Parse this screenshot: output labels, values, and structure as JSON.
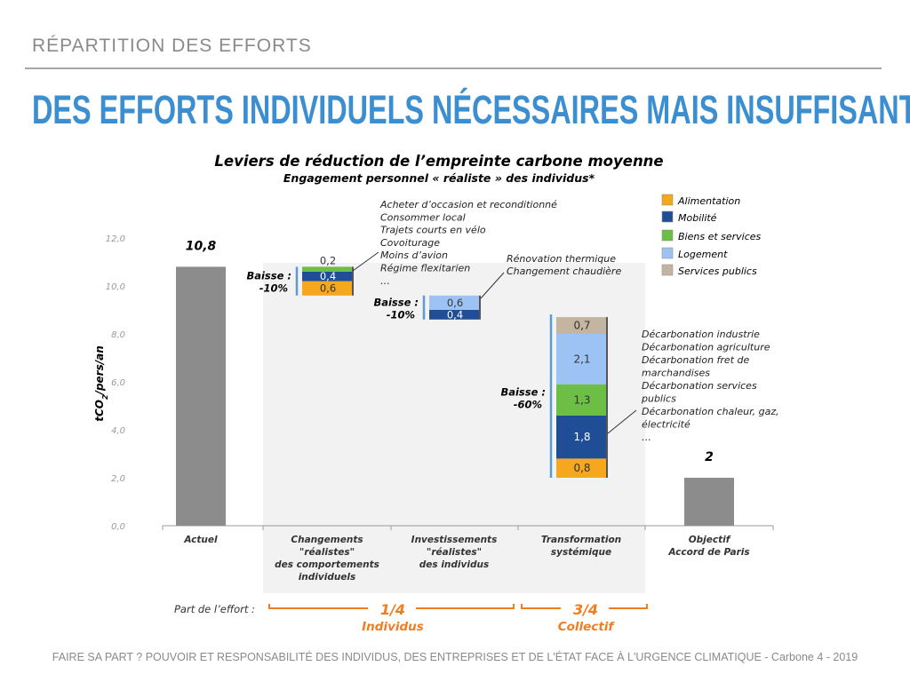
{
  "header": {
    "kicker": "RÉPARTITION DES EFFORTS",
    "title": "DES EFFORTS INDIVIDUELS NÉCESSAIRES MAIS INSUFFISANTS"
  },
  "footer": "FAIRE SA PART ? POUVOIR ET RESPONSABILITÉ DES INDIVIDUS, DES ENTREPRISES ET DE L'ÉTAT FACE À L'URGENCE CLIMATIQUE - Carbone 4 - 2019",
  "chart_data": {
    "type": "bar",
    "subtype": "waterfall",
    "title": "Leviers de réduction de l’empreinte carbone moyenne",
    "subtitle": "Engagement personnel « réaliste » des individus*",
    "ylabel": "tCO2/pers/an",
    "ylim": [
      0,
      12
    ],
    "yticks": [
      "0,0",
      "2,0",
      "4,0",
      "6,0",
      "8,0",
      "10,0",
      "12,0"
    ],
    "grid": false,
    "legend_position": "top-right",
    "categories": [
      "Actuel",
      "Changements \"réalistes\" des comportements individuels",
      "Investissements \"réalistes\" des individus",
      "Transformation systémique",
      "Objectif Accord de Paris"
    ],
    "category_lines": [
      [
        "Actuel"
      ],
      [
        "Changements",
        "\"réalistes\"",
        "des comportements",
        "individuels"
      ],
      [
        "Investissements",
        "\"réalistes\"",
        "des individus"
      ],
      [
        "Transformation",
        "systémique"
      ],
      [
        "Objectif",
        "Accord de Paris"
      ]
    ],
    "series": [
      {
        "name": "Alimentation",
        "color": "#F5A81D"
      },
      {
        "name": "Mobilité",
        "color": "#1F4E96"
      },
      {
        "name": "Biens et services",
        "color": "#6DBE45"
      },
      {
        "name": "Logement",
        "color": "#9DC3F4"
      },
      {
        "name": "Services publics",
        "color": "#C4B5A1"
      }
    ],
    "totals": [
      {
        "category": 0,
        "value": 10.8,
        "label": "10,8",
        "color": "#8C8C8C"
      },
      {
        "category": 4,
        "value": 2,
        "label": "2",
        "color": "#8C8C8C"
      }
    ],
    "steps": [
      {
        "category": 1,
        "top": 10.8,
        "segments": [
          {
            "series": "Alimentation",
            "value": 0.6,
            "label": "0,6"
          },
          {
            "series": "Mobilité",
            "value": 0.4,
            "label": "0,4"
          },
          {
            "series": "Biens et services",
            "value": 0.2,
            "label": "0,2"
          }
        ],
        "baisse": [
          "Baisse :",
          "-10%"
        ],
        "annotation": [
          "Acheter d’occasion et reconditionné",
          "Consommer local",
          "Trajets courts en vélo",
          "Covoiturage",
          "Moins d’avion",
          "Régime flexitarien",
          "…"
        ]
      },
      {
        "category": 2,
        "top": 9.6,
        "segments": [
          {
            "series": "Mobilité",
            "value": 0.4,
            "label": "0,4"
          },
          {
            "series": "Logement",
            "value": 0.6,
            "label": "0,6"
          }
        ],
        "baisse": [
          "Baisse :",
          "-10%"
        ],
        "annotation": [
          "Rénovation thermique",
          "Changement chaudière"
        ]
      },
      {
        "category": 3,
        "top": 8.7,
        "segments": [
          {
            "series": "Alimentation",
            "value": 0.8,
            "label": "0,8"
          },
          {
            "series": "Mobilité",
            "value": 1.8,
            "label": "1,8"
          },
          {
            "series": "Biens et services",
            "value": 1.3,
            "label": "1,3"
          },
          {
            "series": "Logement",
            "value": 2.1,
            "label": "2,1"
          },
          {
            "series": "Services publics",
            "value": 0.7,
            "label": "0,7"
          }
        ],
        "baisse": [
          "Baisse :",
          "-60%"
        ],
        "annotation": [
          "Décarbonation industrie",
          "Décarbonation agriculture",
          "Décarbonation fret de",
          "marchandises",
          "Décarbonation services",
          "publics",
          "Décarbonation chaleur, gaz,",
          "électricité",
          "…"
        ]
      }
    ],
    "effort": {
      "label": "Part de l’effort :",
      "groups": [
        {
          "fraction": "1/4",
          "name": "Individus"
        },
        {
          "fraction": "3/4",
          "name": "Collectif"
        }
      ],
      "color": "#F07D1E"
    }
  }
}
